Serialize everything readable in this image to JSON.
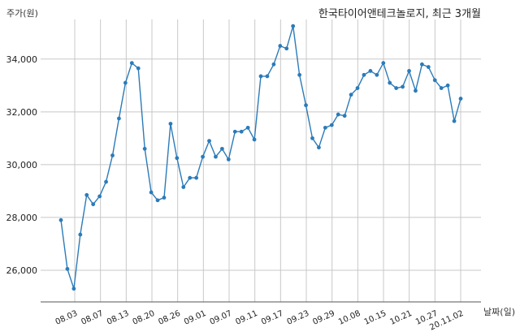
{
  "chart_data": {
    "type": "line",
    "title": "한국타이어앤테크놀로지, 최근 3개월",
    "xlabel": "날짜(일)",
    "ylabel": "주가(원)",
    "x_tick_labels": [
      "08.03",
      "08.07",
      "08.13",
      "08.20",
      "08.26",
      "09.01",
      "09.07",
      "09.11",
      "09.17",
      "09.23",
      "09.29",
      "10.08",
      "10.15",
      "10.21",
      "10.27",
      "20.11.02"
    ],
    "y_ticks": [
      "26,000",
      "28,000",
      "30,000",
      "32,000",
      "34,000"
    ],
    "ylim": [
      24800,
      35500
    ],
    "grid": true,
    "color": "#2b7bb9",
    "series": [
      {
        "values": [
          27900,
          26050,
          25300,
          27350,
          28850,
          28500,
          28800,
          29350,
          30350,
          31750,
          33100,
          33850,
          33650,
          30600,
          28950,
          28650,
          28750,
          31550,
          30250,
          29150,
          29500,
          29500,
          30300,
          30900,
          30300,
          30600,
          30200,
          31250,
          31250,
          31400,
          30950,
          33350,
          33350,
          33800,
          34500,
          34400,
          35250,
          33400,
          32250,
          31000,
          30650,
          31400,
          31500,
          31900,
          31850,
          32650,
          32900,
          33400,
          33550,
          33400,
          33850,
          33100,
          32900,
          32950,
          33550,
          32800,
          33800,
          33700,
          33200,
          32900,
          33000,
          31650,
          32500
        ]
      }
    ]
  }
}
